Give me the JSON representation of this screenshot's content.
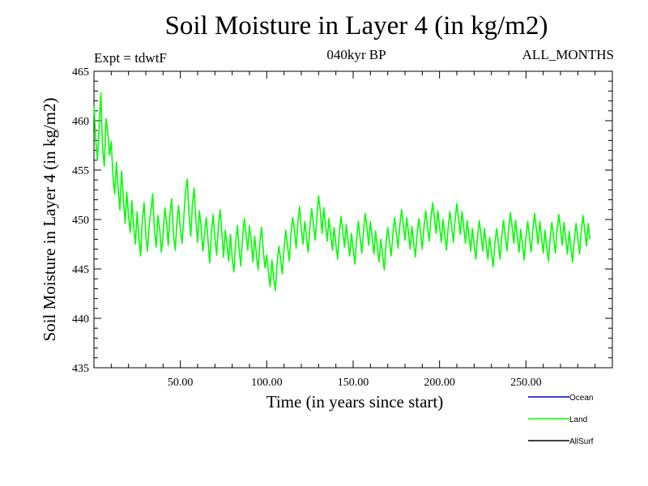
{
  "chart_data": {
    "type": "line",
    "title": "Soil Moisture in Layer 4 (in kg/m2)",
    "subtitle": "040kyr BP",
    "left_note": "Expt = tdwtF",
    "right_note": "ALL_MONTHS",
    "xlabel": "Time (in years since start)",
    "ylabel": "Soil Moisture in Layer 4 (in kg/m2)",
    "xlim": [
      0,
      300
    ],
    "ylim": [
      435,
      465
    ],
    "x_ticks": [
      {
        "value": 50,
        "label": "50.00"
      },
      {
        "value": 100,
        "label": "100.00"
      },
      {
        "value": 150,
        "label": "150.00"
      },
      {
        "value": 200,
        "label": "200.00"
      },
      {
        "value": 250,
        "label": "250.00"
      }
    ],
    "y_ticks": [
      {
        "value": 435,
        "label": "435"
      },
      {
        "value": 440,
        "label": "440"
      },
      {
        "value": 445,
        "label": "445"
      },
      {
        "value": 450,
        "label": "450"
      },
      {
        "value": 455,
        "label": "455"
      },
      {
        "value": 460,
        "label": "460"
      },
      {
        "value": 465,
        "label": "465"
      }
    ],
    "legend": [
      {
        "name": "Ocean",
        "color": "#0000cc"
      },
      {
        "name": "Land",
        "color": "#00ff00"
      },
      {
        "name": "AllSurf",
        "color": "#000000"
      }
    ],
    "series": [
      {
        "name": "Land",
        "color": "#00ff00",
        "x_start": 0,
        "x_step": 1,
        "values": [
          461.5,
          458.2,
          456.0,
          459.3,
          462.8,
          457.1,
          455.4,
          460.2,
          458.8,
          456.5,
          457.9,
          454.3,
          452.6,
          455.8,
          453.1,
          451.0,
          454.9,
          452.2,
          449.6,
          452.8,
          450.3,
          448.7,
          451.9,
          449.2,
          447.5,
          450.8,
          448.1,
          446.3,
          449.9,
          451.7,
          448.4,
          446.8,
          449.5,
          450.9,
          452.6,
          448.9,
          447.2,
          450.4,
          449.1,
          446.7,
          448.3,
          451.2,
          449.8,
          447.4,
          450.6,
          452.1,
          448.5,
          446.9,
          449.7,
          451.4,
          449.0,
          447.6,
          450.2,
          452.8,
          454.1,
          450.5,
          448.3,
          451.6,
          453.2,
          449.8,
          447.7,
          450.9,
          449.3,
          446.8,
          448.6,
          450.2,
          447.9,
          445.6,
          448.8,
          450.5,
          448.1,
          446.4,
          449.3,
          451.0,
          448.7,
          446.2,
          448.9,
          447.3,
          445.8,
          448.5,
          446.1,
          444.7,
          447.6,
          449.4,
          447.0,
          445.3,
          448.2,
          450.1,
          448.6,
          446.9,
          449.4,
          447.8,
          445.7,
          448.3,
          446.5,
          444.9,
          447.7,
          449.2,
          446.8,
          445.1,
          446.4,
          444.6,
          443.2,
          445.9,
          444.1,
          442.8,
          445.6,
          447.3,
          446.0,
          444.5,
          447.1,
          448.9,
          447.4,
          445.8,
          448.5,
          450.2,
          448.9,
          447.1,
          449.6,
          451.3,
          449.0,
          447.5,
          449.8,
          448.2,
          446.7,
          449.4,
          451.1,
          449.6,
          447.9,
          450.3,
          452.4,
          450.8,
          448.6,
          451.2,
          449.5,
          447.8,
          450.1,
          448.4,
          446.9,
          449.2,
          447.5,
          446.0,
          448.7,
          450.3,
          448.8,
          447.2,
          449.5,
          447.9,
          446.3,
          448.6,
          447.0,
          445.5,
          448.1,
          449.8,
          448.2,
          446.6,
          448.9,
          450.6,
          449.1,
          447.4,
          449.8,
          448.1,
          446.5,
          448.8,
          447.2,
          445.7,
          448.0,
          446.4,
          444.9,
          447.5,
          449.2,
          447.8,
          446.3,
          448.6,
          450.2,
          448.7,
          447.1,
          449.4,
          451.0,
          449.5,
          447.9,
          450.2,
          448.6,
          447.0,
          449.3,
          447.7,
          446.2,
          448.5,
          450.1,
          448.6,
          447.0,
          449.3,
          450.9,
          449.4,
          447.8,
          450.1,
          451.7,
          450.2,
          448.6,
          450.9,
          449.3,
          447.7,
          450.0,
          448.4,
          446.9,
          449.2,
          450.8,
          449.3,
          447.7,
          450.0,
          451.6,
          450.1,
          448.5,
          450.8,
          449.2,
          447.6,
          449.9,
          448.3,
          446.8,
          449.1,
          447.5,
          446.0,
          448.3,
          449.9,
          448.4,
          446.8,
          449.1,
          447.5,
          446.0,
          448.2,
          446.7,
          445.2,
          447.5,
          449.1,
          447.6,
          446.0,
          448.3,
          449.9,
          448.4,
          446.8,
          449.1,
          450.7,
          449.2,
          447.6,
          449.9,
          448.3,
          446.7,
          449.0,
          447.4,
          445.9,
          448.2,
          449.8,
          448.3,
          446.7,
          449.0,
          450.6,
          449.1,
          447.5,
          449.8,
          448.2,
          446.6,
          448.9,
          447.3,
          445.8,
          448.1,
          449.7,
          448.2,
          446.6,
          448.9,
          450.5,
          449.0,
          447.4,
          449.7,
          448.1,
          446.5,
          448.8,
          447.2,
          445.7,
          448.0,
          449.6,
          448.1,
          446.5,
          448.8,
          450.4,
          448.9,
          447.3,
          449.6,
          448.0
        ]
      }
    ]
  }
}
